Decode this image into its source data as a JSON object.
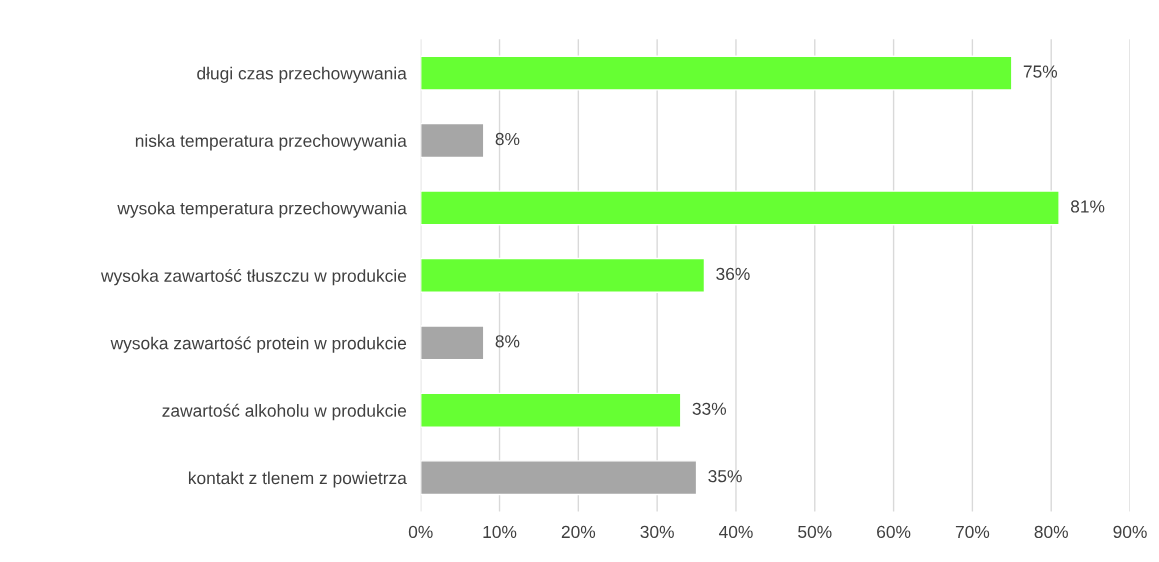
{
  "chart_data": {
    "type": "bar",
    "orientation": "horizontal",
    "categories": [
      "długi czas przechowywania",
      "niska temperatura przechowywania",
      "wysoka temperatura przechowywania",
      "wysoka zawartość tłuszczu w produkcie",
      "wysoka zawartość protein w produkcie",
      "zawartość alkoholu w produkcie",
      "kontakt z tlenem z powietrza"
    ],
    "values": [
      75,
      8,
      81,
      36,
      8,
      33,
      35
    ],
    "colors": [
      "#66ff33",
      "#a6a6a6",
      "#66ff33",
      "#66ff33",
      "#a6a6a6",
      "#66ff33",
      "#a6a6a6"
    ],
    "value_labels": [
      "75%",
      "8%",
      "81%",
      "36%",
      "8%",
      "33%",
      "35%"
    ],
    "xlim": [
      0,
      90
    ],
    "xticks": [
      {
        "value": 0,
        "label": "0%"
      },
      {
        "value": 10,
        "label": "10%"
      },
      {
        "value": 20,
        "label": "20%"
      },
      {
        "value": 30,
        "label": "30%"
      },
      {
        "value": 40,
        "label": "40%"
      },
      {
        "value": 50,
        "label": "50%"
      },
      {
        "value": 60,
        "label": "60%"
      },
      {
        "value": 70,
        "label": "70%"
      },
      {
        "value": 80,
        "label": "80%"
      },
      {
        "value": 90,
        "label": "90%"
      }
    ],
    "grid": "x"
  }
}
